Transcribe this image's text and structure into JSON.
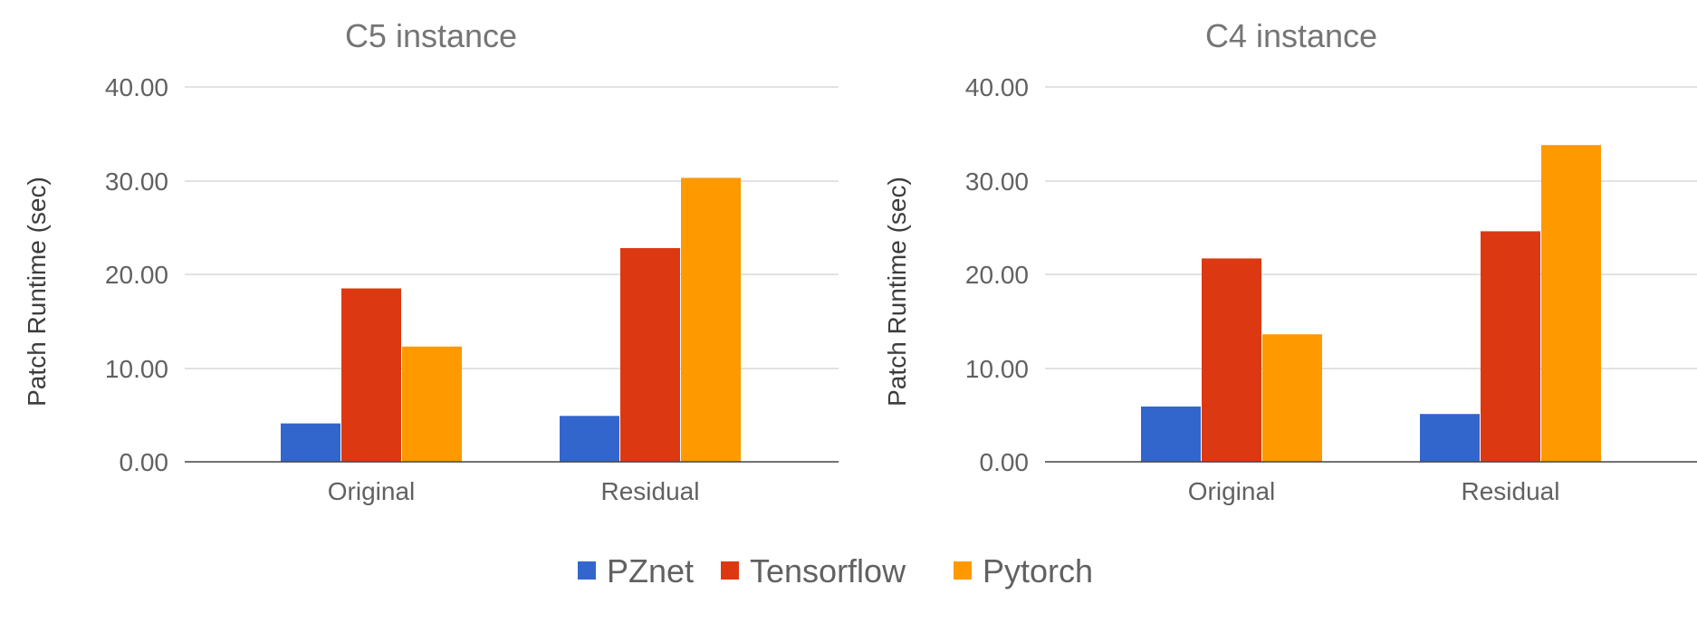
{
  "chart_data": [
    {
      "type": "bar",
      "title": "C5 instance",
      "ylabel": "Patch Runtime (sec)",
      "xlabel": "",
      "categories": [
        "Original",
        "Residual"
      ],
      "yticks": [
        "0.00",
        "10.00",
        "20.00",
        "30.00",
        "40.00"
      ],
      "ylim": [
        0,
        40
      ],
      "grid": true,
      "series": [
        {
          "name": "PZnet",
          "values": [
            4.1,
            4.9
          ]
        },
        {
          "name": "Tensorflow",
          "values": [
            18.5,
            22.8
          ]
        },
        {
          "name": "Pytorch",
          "values": [
            12.3,
            30.3
          ]
        }
      ]
    },
    {
      "type": "bar",
      "title": "C4 instance",
      "ylabel": "Patch Runtime (sec)",
      "xlabel": "",
      "categories": [
        "Original",
        "Residual"
      ],
      "yticks": [
        "0.00",
        "10.00",
        "20.00",
        "30.00",
        "40.00"
      ],
      "ylim": [
        0,
        40
      ],
      "grid": true,
      "series": [
        {
          "name": "PZnet",
          "values": [
            5.9,
            5.1
          ]
        },
        {
          "name": "Tensorflow",
          "values": [
            21.7,
            24.6
          ]
        },
        {
          "name": "Pytorch",
          "values": [
            13.6,
            33.8
          ]
        }
      ]
    }
  ],
  "legend": {
    "position": "bottom",
    "items": [
      {
        "label": "PZnet",
        "color": "#3366cc"
      },
      {
        "label": "Tensorflow",
        "color": "#dc3912"
      },
      {
        "label": "Pytorch",
        "color": "#ff9900"
      }
    ]
  },
  "colors": {
    "PZnet": "#3366cc",
    "Tensorflow": "#dc3912",
    "Pytorch": "#ff9900"
  }
}
